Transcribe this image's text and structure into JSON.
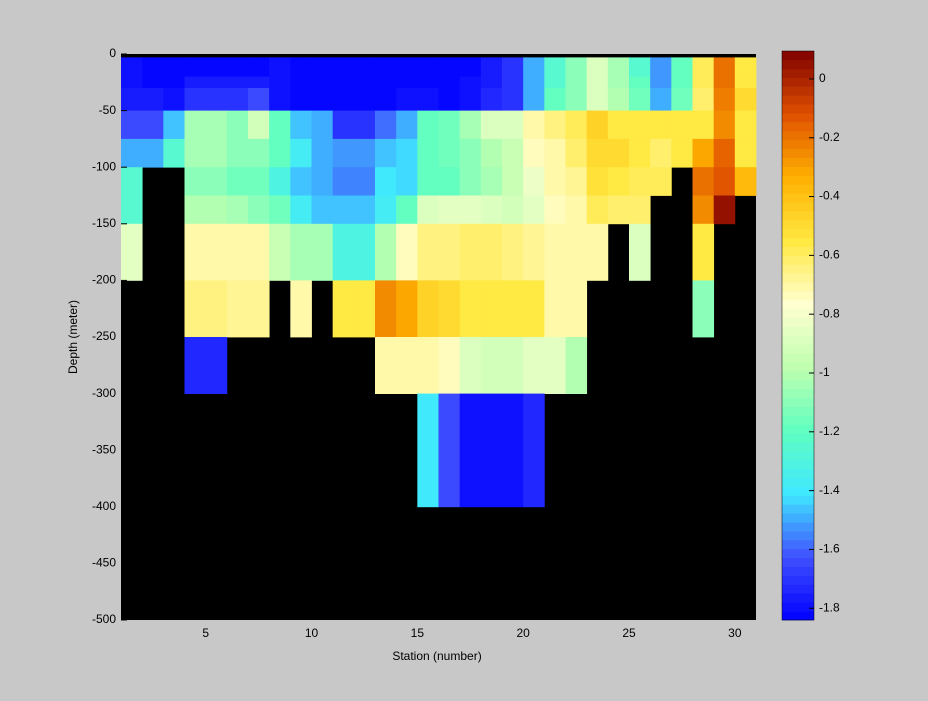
{
  "chart_data": {
    "type": "heatmap",
    "xlabel": "Station (number)",
    "ylabel": "Depth (meter)",
    "x": [
      1,
      2,
      3,
      4,
      5,
      6,
      7,
      8,
      9,
      10,
      11,
      12,
      13,
      14,
      15,
      16,
      17,
      18,
      19,
      20,
      21,
      22,
      23,
      24,
      25,
      26,
      27,
      28,
      29,
      30,
      31
    ],
    "y": [
      -3,
      -20,
      -30,
      -50,
      -75,
      -100,
      -125,
      -150,
      -200,
      -250,
      -300,
      -400,
      -500
    ],
    "z": [
      [
        -1.8,
        -1.82,
        -1.82,
        -1.82,
        -1.82,
        -1.82,
        -1.82,
        -1.8,
        -1.82,
        -1.82,
        -1.82,
        -1.82,
        -1.82,
        -1.82,
        -1.82,
        -1.82,
        -1.82,
        -1.75,
        -1.7,
        -1.5,
        -1.25,
        -1.1,
        -0.88,
        -1.05,
        -1.25,
        -1.52,
        -1.2,
        -0.6,
        -0.2,
        -0.55
      ],
      [
        -1.8,
        -1.82,
        -1.82,
        -1.75,
        -1.75,
        -1.75,
        -1.75,
        -1.8,
        -1.82,
        -1.82,
        -1.82,
        -1.82,
        -1.82,
        -1.82,
        -1.82,
        -1.82,
        -1.8,
        -1.75,
        -1.7,
        -1.5,
        -1.25,
        -1.1,
        -0.88,
        -1.05,
        -1.2,
        -1.52,
        -1.2,
        -0.6,
        -0.18,
        -0.55
      ],
      [
        -1.75,
        -1.75,
        -1.78,
        -1.7,
        -1.7,
        -1.7,
        -1.63,
        -1.78,
        -1.82,
        -1.82,
        -1.82,
        -1.82,
        -1.82,
        -1.78,
        -1.8,
        -1.82,
        -1.8,
        -1.72,
        -1.7,
        -1.48,
        -1.2,
        -1.1,
        -0.9,
        -1.0,
        -1.15,
        -1.5,
        -1.15,
        -0.62,
        -0.22,
        -0.5
      ],
      [
        -1.65,
        -1.65,
        -1.45,
        -1.05,
        -1.05,
        -1.1,
        -0.92,
        -1.2,
        -1.45,
        -1.5,
        -1.7,
        -1.7,
        -1.58,
        -1.48,
        -1.2,
        -1.15,
        -1.05,
        -0.9,
        -0.88,
        -0.7,
        -0.65,
        -0.58,
        -0.45,
        -0.55,
        -0.55,
        -0.55,
        -0.55,
        -0.55,
        -0.25,
        -0.55
      ],
      [
        -1.5,
        -1.5,
        -1.25,
        -1.05,
        -1.05,
        -1.1,
        -1.1,
        -1.2,
        -1.38,
        -1.48,
        -1.52,
        -1.52,
        -1.45,
        -1.42,
        -1.2,
        -1.15,
        -1.1,
        -1.0,
        -0.95,
        -0.75,
        -0.7,
        -0.62,
        -0.5,
        -0.5,
        -0.55,
        -0.62,
        -0.55,
        -0.3,
        -0.15,
        -0.55
      ],
      [
        -1.25,
        null,
        null,
        -1.1,
        -1.1,
        -1.15,
        -1.15,
        -1.3,
        -1.45,
        -1.5,
        -1.55,
        -1.55,
        -1.4,
        -1.42,
        -1.2,
        -1.2,
        -1.1,
        -1.05,
        -0.95,
        -0.82,
        -0.7,
        -0.68,
        -0.52,
        -0.55,
        -0.6,
        -0.6,
        null,
        -0.2,
        -0.12,
        -0.38
      ],
      [
        -1.25,
        null,
        null,
        -1.0,
        -1.0,
        -1.05,
        -1.1,
        -1.15,
        -1.38,
        -1.45,
        -1.45,
        -1.45,
        -1.38,
        -1.2,
        -0.9,
        -0.85,
        -0.85,
        -0.88,
        -0.92,
        -0.85,
        -0.75,
        -0.7,
        -0.6,
        -0.62,
        -0.62,
        null,
        null,
        -0.25,
        0.05,
        null
      ],
      [
        -0.85,
        null,
        null,
        -0.7,
        -0.72,
        -0.72,
        -0.72,
        -0.95,
        -1.05,
        -1.05,
        -1.32,
        -1.32,
        -1.0,
        -0.75,
        -0.65,
        -0.65,
        -0.62,
        -0.62,
        -0.65,
        -0.68,
        -0.72,
        -0.72,
        -0.72,
        null,
        -0.88,
        null,
        null,
        -0.55,
        null,
        null
      ],
      [
        null,
        null,
        null,
        -0.65,
        -0.65,
        -0.68,
        -0.68,
        null,
        -0.72,
        null,
        -0.55,
        -0.55,
        -0.25,
        -0.32,
        -0.45,
        -0.48,
        -0.55,
        -0.55,
        -0.55,
        -0.55,
        -0.7,
        -0.72,
        null,
        null,
        null,
        null,
        null,
        -1.1,
        null,
        null
      ],
      [
        null,
        null,
        null,
        -1.72,
        -1.72,
        null,
        null,
        null,
        null,
        null,
        null,
        null,
        -0.72,
        -0.72,
        -0.7,
        -0.75,
        -0.88,
        -0.92,
        -0.92,
        -0.85,
        -0.85,
        -1.0,
        null,
        null,
        null,
        null,
        null,
        null,
        null,
        null
      ],
      [
        null,
        null,
        null,
        null,
        null,
        null,
        null,
        null,
        null,
        null,
        null,
        null,
        null,
        null,
        -1.4,
        -1.65,
        -1.78,
        -1.8,
        -1.8,
        -1.72,
        null,
        null,
        null,
        null,
        null,
        null,
        null,
        null,
        null,
        null
      ],
      [
        null,
        null,
        null,
        null,
        null,
        null,
        null,
        null,
        null,
        null,
        null,
        null,
        null,
        null,
        null,
        null,
        null,
        null,
        null,
        null,
        null,
        null,
        null,
        null,
        null,
        null,
        null,
        null,
        null,
        null
      ]
    ],
    "xlim": [
      1,
      31
    ],
    "ylim": [
      -500,
      0
    ],
    "xticks": [
      5,
      10,
      15,
      20,
      25,
      30
    ],
    "yticks": [
      0,
      -50,
      -100,
      -150,
      -200,
      -250,
      -300,
      -350,
      -400,
      -450,
      -500
    ],
    "clim": [
      -1.84,
      0.095
    ],
    "cticks": [
      0,
      -0.2,
      -0.4,
      -0.6,
      -0.8,
      -1,
      -1.2,
      -1.4,
      -1.6,
      -1.8
    ],
    "colormap": [
      "#0000ff",
      "#4050ff",
      "#40e8ff",
      "#60ffc0",
      "#c0ffb0",
      "#ffffd0",
      "#ffe840",
      "#ffb000",
      "#e05000",
      "#800000"
    ],
    "colormap_levels": 64,
    "nan_color": "#000000"
  }
}
